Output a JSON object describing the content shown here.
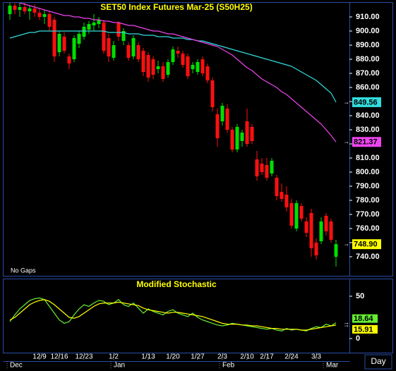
{
  "chart_data": [
    {
      "type": "candlestick",
      "title": "SET50  Index  Futures  Mar-25  (S50H25)",
      "note": "No  Gaps",
      "categories": [
        null,
        null,
        null,
        null,
        null,
        null,
        "12/9",
        null,
        null,
        null,
        "12/16",
        null,
        null,
        null,
        null,
        "12/23",
        null,
        null,
        null,
        null,
        null,
        "1/2",
        null,
        null,
        null,
        null,
        null,
        null,
        "1/13",
        null,
        null,
        null,
        null,
        "1/20",
        null,
        null,
        null,
        null,
        "1/27",
        null,
        null,
        null,
        null,
        "2/3",
        null,
        null,
        null,
        null,
        "2/10",
        null,
        null,
        null,
        "2/17",
        null,
        null,
        null,
        null,
        "2/24",
        null,
        null,
        null,
        null,
        "3/3",
        null,
        null,
        null,
        null
      ],
      "months": [
        "Dec",
        null,
        null,
        null,
        null,
        null,
        null,
        null,
        null,
        null,
        null,
        null,
        null,
        null,
        null,
        null,
        null,
        null,
        null,
        null,
        null,
        "Jan",
        null,
        null,
        null,
        null,
        null,
        null,
        null,
        null,
        null,
        null,
        null,
        null,
        null,
        null,
        null,
        null,
        null,
        null,
        null,
        null,
        null,
        "Feb",
        null,
        null,
        null,
        null,
        null,
        null,
        null,
        null,
        null,
        null,
        null,
        null,
        null,
        null,
        null,
        null,
        null,
        null,
        null,
        null,
        "Mar",
        null,
        null,
        null,
        null
      ],
      "open": [
        912,
        918,
        915,
        917,
        914,
        916,
        913,
        910,
        912,
        908,
        885,
        896,
        882,
        880,
        891,
        896,
        901,
        904,
        905,
        906,
        895,
        881,
        906,
        893,
        890,
        882,
        890,
        886,
        883,
        880,
        873,
        875,
        869,
        878,
        886,
        884,
        882,
        873,
        871,
        880,
        875,
        865,
        841,
        836,
        845,
        830,
        816,
        822,
        836,
        832,
        809,
        806,
        805,
        799,
        796,
        786,
        784,
        778,
        760,
        776,
        765,
        771,
        750,
        751,
        769,
        765,
        740
      ],
      "high": [
        922,
        921,
        920,
        921,
        918,
        919,
        916,
        915,
        914,
        910,
        900,
        899,
        884,
        897,
        900,
        906,
        907,
        912,
        910,
        908,
        898,
        893,
        907,
        902,
        892,
        897,
        892,
        888,
        885,
        882,
        879,
        878,
        880,
        889,
        889,
        886,
        884,
        878,
        880,
        882,
        877,
        867,
        845,
        849,
        848,
        832,
        834,
        830,
        845,
        834,
        815,
        810,
        810,
        810,
        798,
        792,
        790,
        781,
        780,
        778,
        768,
        774,
        753,
        768,
        771,
        767,
        752
      ],
      "low": [
        908,
        912,
        910,
        912,
        908,
        910,
        908,
        905,
        900,
        878,
        882,
        884,
        873,
        878,
        888,
        894,
        898,
        900,
        902,
        884,
        878,
        879,
        893,
        890,
        879,
        880,
        878,
        868,
        864,
        866,
        870,
        864,
        867,
        876,
        881,
        874,
        866,
        870,
        869,
        868,
        863,
        843,
        818,
        833,
        828,
        814,
        814,
        818,
        818,
        820,
        794,
        798,
        794,
        797,
        780,
        779,
        772,
        760,
        758,
        765,
        754,
        740,
        738,
        749,
        755,
        750,
        733
      ],
      "close": [
        918,
        915,
        917,
        914,
        916,
        913,
        910,
        912,
        903,
        882,
        898,
        886,
        877,
        895,
        898,
        903,
        905,
        906,
        908,
        886,
        882,
        890,
        896,
        900,
        881,
        895,
        880,
        871,
        867,
        869,
        875,
        866,
        878,
        887,
        884,
        876,
        868,
        876,
        878,
        870,
        865,
        846,
        824,
        847,
        830,
        816,
        832,
        828,
        820,
        822,
        797,
        800,
        796,
        808,
        783,
        781,
        775,
        762,
        778,
        767,
        757,
        746,
        741,
        765,
        758,
        752,
        748.9
      ],
      "close_label": "748.90",
      "color_up": "#00e000",
      "color_down": "#ff1010",
      "series": [
        {
          "color": "#33dddd",
          "values": [
            895,
            896,
            897,
            898,
            899,
            899,
            900,
            900,
            900,
            900,
            900,
            900,
            900,
            900,
            900,
            900,
            900,
            900,
            900,
            900,
            899,
            899,
            899,
            899,
            898,
            898,
            898,
            897,
            897,
            897,
            896,
            896,
            896,
            895,
            895,
            895,
            894,
            894,
            893,
            893,
            892,
            891,
            890,
            889,
            888,
            887,
            886,
            885,
            884,
            883,
            882,
            881,
            880,
            879,
            878,
            877,
            876,
            875,
            873,
            871,
            869,
            867,
            865,
            862,
            859,
            856,
            849.56
          ]
        },
        {
          "color": "#ee44ee",
          "values": [
            922,
            921,
            920,
            919,
            918,
            917,
            916,
            915,
            914,
            913,
            912,
            911,
            911,
            910,
            910,
            909,
            909,
            908,
            908,
            907,
            907,
            906,
            906,
            905,
            904,
            904,
            903,
            902,
            901,
            900,
            900,
            899,
            898,
            898,
            897,
            896,
            895,
            894,
            893,
            892,
            891,
            890,
            889,
            887,
            885,
            883,
            880,
            877,
            874,
            872,
            869,
            866,
            864,
            862,
            860,
            857,
            855,
            852,
            849,
            846,
            843,
            840,
            837,
            834,
            830,
            826,
            821.37
          ]
        }
      ],
      "ylim": [
        727,
        919
      ],
      "yticks": [
        {
          "value": 740,
          "label": "740.00"
        },
        {
          "value": 750,
          "label": "750.00"
        },
        {
          "value": 760,
          "label": "760.00"
        },
        {
          "value": 770,
          "label": "770.00"
        },
        {
          "value": 780,
          "label": "780.00"
        },
        {
          "value": 790,
          "label": "790.00"
        },
        {
          "value": 800,
          "label": "800.00"
        },
        {
          "value": 810,
          "label": "810.00"
        },
        {
          "value": 820,
          "label": "820.00"
        },
        {
          "value": 830,
          "label": "830.00"
        },
        {
          "value": 840,
          "label": "840.00"
        },
        {
          "value": 850,
          "label": "850.00"
        },
        {
          "value": 860,
          "label": "860.00"
        },
        {
          "value": 870,
          "label": "870.00"
        },
        {
          "value": 880,
          "label": "880.00"
        },
        {
          "value": 890,
          "label": "890.00"
        },
        {
          "value": 900,
          "label": "900.00"
        },
        {
          "value": 910,
          "label": "910.00"
        }
      ],
      "grid": false
    },
    {
      "type": "line",
      "title": "Modified  Stochastic",
      "series": [
        {
          "color": "#66ee33",
          "values": [
            20,
            28,
            35,
            40,
            45,
            47,
            48,
            46,
            38,
            30,
            22,
            18,
            20,
            28,
            35,
            40,
            38,
            42,
            45,
            44,
            40,
            42,
            46,
            40,
            38,
            42,
            36,
            30,
            35,
            32,
            30,
            28,
            32,
            34,
            30,
            28,
            26,
            30,
            25,
            22,
            20,
            18,
            16,
            15,
            16,
            18,
            17,
            16,
            15,
            14,
            13,
            12,
            11,
            12,
            10,
            9,
            12,
            10,
            11,
            10,
            9,
            12,
            14,
            13,
            17,
            15,
            18.64
          ]
        },
        {
          "color": "#ffff00",
          "values": [
            22,
            25,
            30,
            35,
            40,
            43,
            45,
            46,
            44,
            40,
            35,
            30,
            25,
            24,
            26,
            30,
            34,
            38,
            41,
            42,
            42,
            42,
            43,
            42,
            41,
            40,
            39,
            36,
            34,
            33,
            32,
            31,
            30,
            31,
            31,
            30,
            29,
            28,
            27,
            26,
            24,
            22,
            20,
            18,
            17,
            17,
            17,
            16,
            16,
            15,
            15,
            14,
            13,
            12,
            12,
            11,
            11,
            11,
            11,
            10,
            10,
            11,
            12,
            13,
            14,
            15,
            15.91
          ]
        }
      ],
      "ylim": [
        -17,
        69
      ],
      "yticks": [
        0,
        50
      ],
      "grid": false
    }
  ],
  "period_button": "Day"
}
